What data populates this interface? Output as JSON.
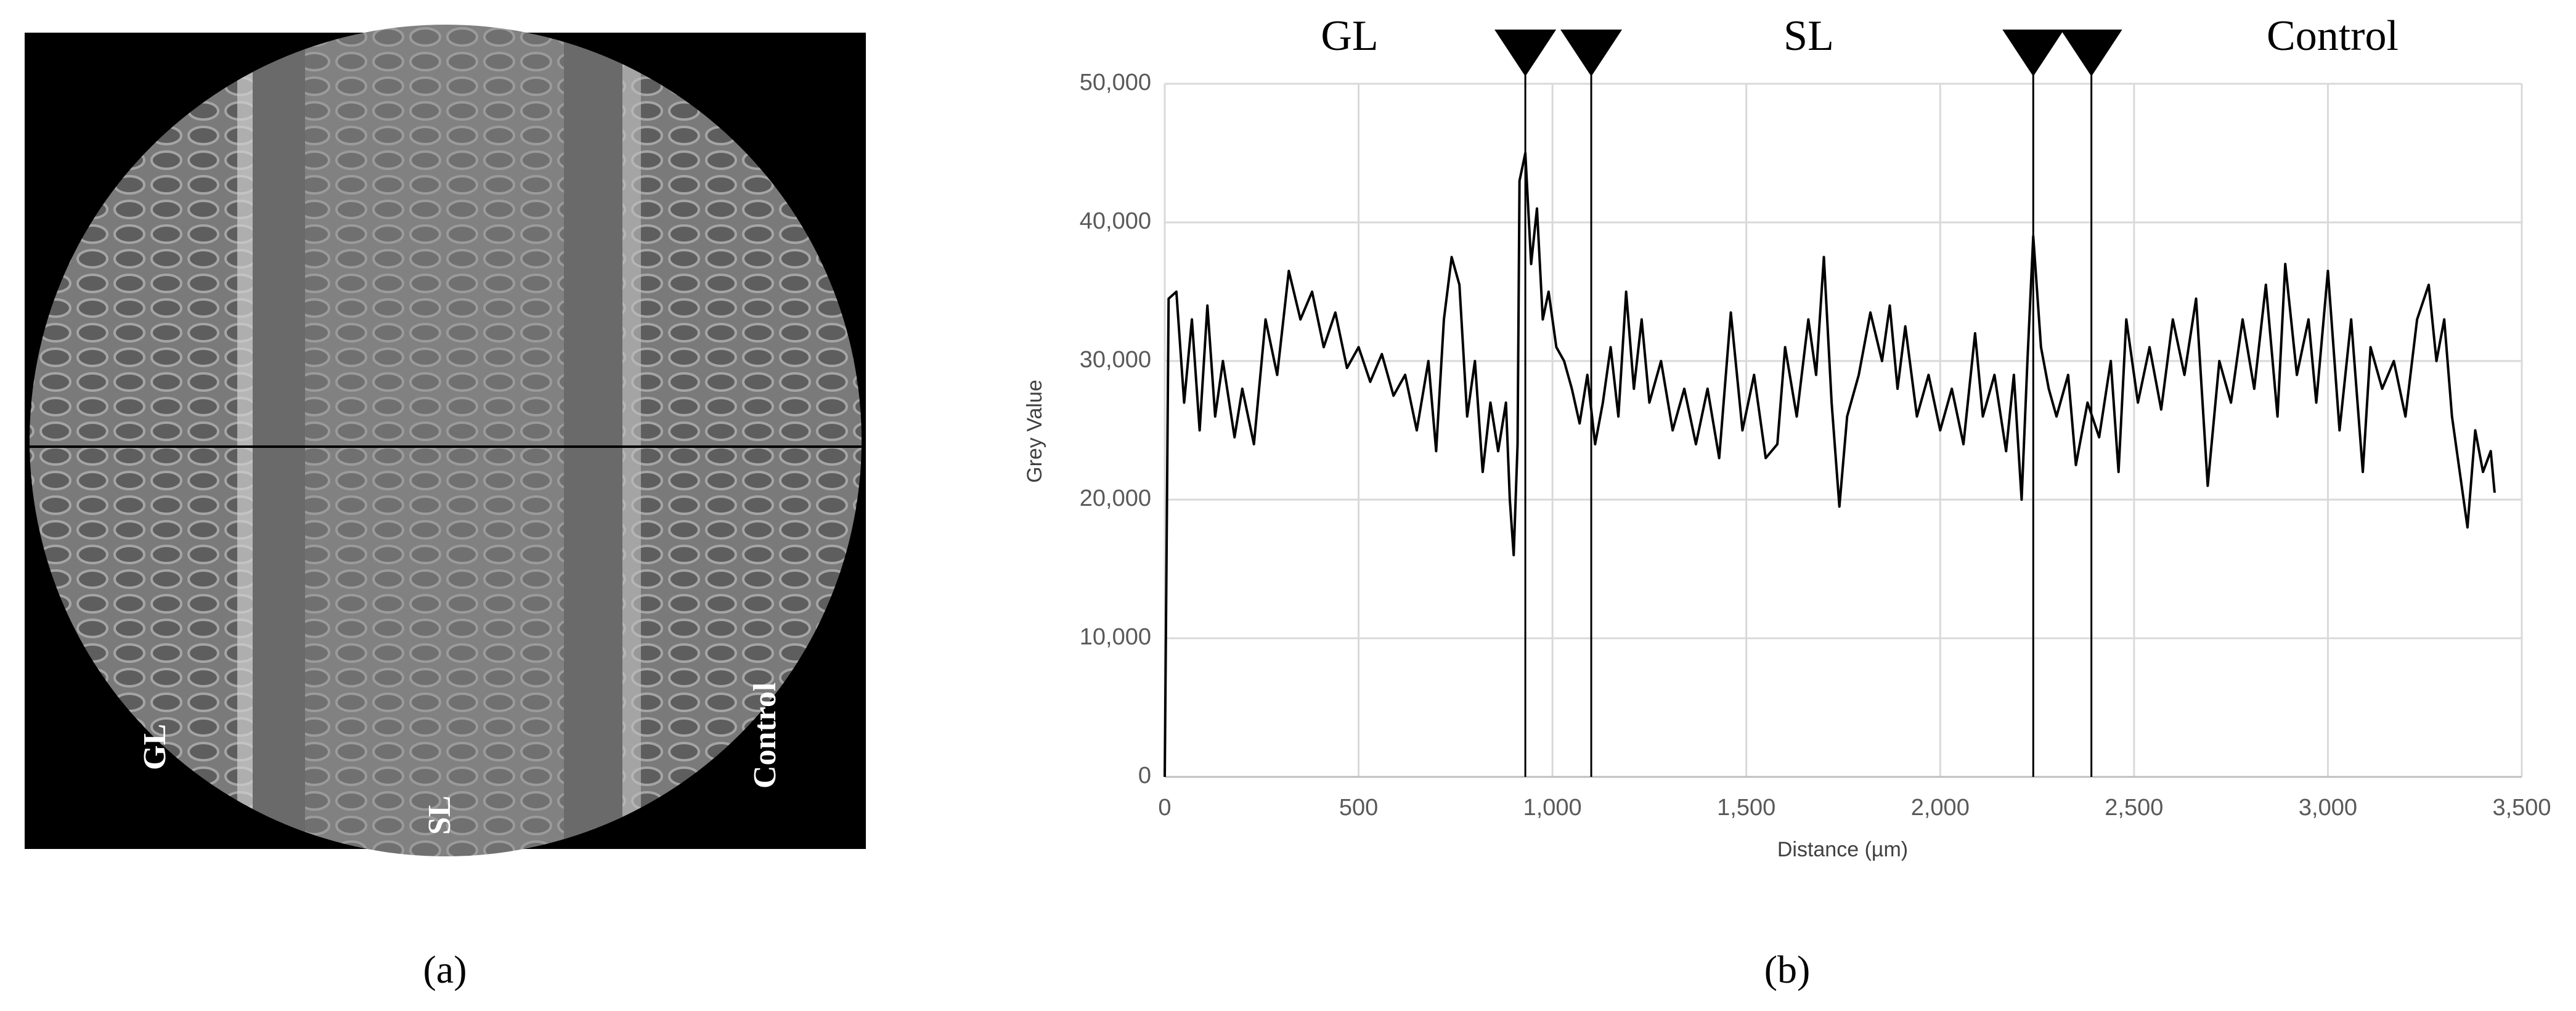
{
  "panel_a": {
    "labels": [
      "GL",
      "SL",
      "Control"
    ],
    "caption": "(a)"
  },
  "caption_b": "(b)",
  "chart_data": {
    "type": "line",
    "x_label": "Distance (µm)",
    "y_label": "Grey Value",
    "region_labels": [
      "GL",
      "SL",
      "Control"
    ],
    "markers": [
      930,
      1100,
      2240,
      2390
    ],
    "xlim": [
      0,
      3500
    ],
    "ylim": [
      0,
      50000
    ],
    "xticks": [
      0,
      500,
      {
        "value": 1000,
        "label": "1,000"
      },
      {
        "value": 1500,
        "label": "1,500"
      },
      {
        "value": 2000,
        "label": "2,000"
      },
      {
        "value": 2500,
        "label": "2,500"
      },
      {
        "value": 3000,
        "label": "3,000"
      },
      {
        "value": 3500,
        "label": "3,500"
      }
    ],
    "yticks": [
      0,
      {
        "value": 10000,
        "label": "10,000"
      },
      {
        "value": 20000,
        "label": "20,000"
      },
      {
        "value": 30000,
        "label": "30,000"
      },
      {
        "value": 40000,
        "label": "40,000"
      },
      {
        "value": 50000,
        "label": "50,000"
      }
    ],
    "grid": true,
    "series": [
      {
        "color": "#000000",
        "x": [
          0,
          10,
          30,
          50,
          70,
          90,
          110,
          130,
          150,
          180,
          200,
          230,
          260,
          290,
          320,
          350,
          380,
          410,
          440,
          470,
          500,
          530,
          560,
          590,
          620,
          650,
          680,
          700,
          720,
          740,
          760,
          780,
          800,
          820,
          840,
          860,
          880,
          890,
          900,
          910,
          915,
          930,
          945,
          960,
          975,
          990,
          1010,
          1030,
          1050,
          1070,
          1090,
          1110,
          1130,
          1150,
          1170,
          1190,
          1210,
          1230,
          1250,
          1280,
          1310,
          1340,
          1370,
          1400,
          1430,
          1460,
          1490,
          1520,
          1550,
          1580,
          1600,
          1630,
          1660,
          1680,
          1700,
          1720,
          1740,
          1760,
          1790,
          1820,
          1850,
          1870,
          1890,
          1910,
          1940,
          1970,
          2000,
          2030,
          2060,
          2090,
          2110,
          2140,
          2170,
          2190,
          2210,
          2225,
          2240,
          2260,
          2280,
          2300,
          2330,
          2350,
          2380,
          2410,
          2440,
          2460,
          2480,
          2510,
          2540,
          2570,
          2600,
          2630,
          2660,
          2690,
          2720,
          2750,
          2780,
          2810,
          2840,
          2870,
          2890,
          2920,
          2950,
          2970,
          3000,
          3030,
          3060,
          3090,
          3110,
          3140,
          3170,
          3200,
          3230,
          3260,
          3280,
          3300,
          3320,
          3340,
          3360,
          3380,
          3400,
          3420,
          3430
        ],
        "values": [
          0,
          34500,
          35000,
          27000,
          33000,
          25000,
          34000,
          26000,
          30000,
          24500,
          28000,
          24000,
          33000,
          29000,
          36500,
          33000,
          35000,
          31000,
          33500,
          29500,
          31000,
          28500,
          30500,
          27500,
          29000,
          25000,
          30000,
          23500,
          33000,
          37500,
          35500,
          26000,
          30000,
          22000,
          27000,
          23500,
          27000,
          20000,
          16000,
          24000,
          43000,
          45000,
          37000,
          41000,
          33000,
          35000,
          31000,
          30000,
          28000,
          25500,
          29000,
          24000,
          27000,
          31000,
          26000,
          35000,
          28000,
          33000,
          27000,
          30000,
          25000,
          28000,
          24000,
          28000,
          23000,
          33500,
          25000,
          29000,
          23000,
          24000,
          31000,
          26000,
          33000,
          29000,
          37500,
          27000,
          19500,
          26000,
          29000,
          33500,
          30000,
          34000,
          28000,
          32500,
          26000,
          29000,
          25000,
          28000,
          24000,
          32000,
          26000,
          29000,
          23500,
          29000,
          20000,
          30000,
          39000,
          31000,
          28000,
          26000,
          29000,
          22500,
          27000,
          24500,
          30000,
          22000,
          33000,
          27000,
          31000,
          26500,
          33000,
          29000,
          34500,
          21000,
          30000,
          27000,
          33000,
          28000,
          35500,
          26000,
          37000,
          29000,
          33000,
          27000,
          36500,
          25000,
          33000,
          22000,
          31000,
          28000,
          30000,
          26000,
          33000,
          35500,
          30000,
          33000,
          26000,
          22000,
          18000,
          25000,
          22000,
          23500,
          20500
        ]
      }
    ]
  }
}
